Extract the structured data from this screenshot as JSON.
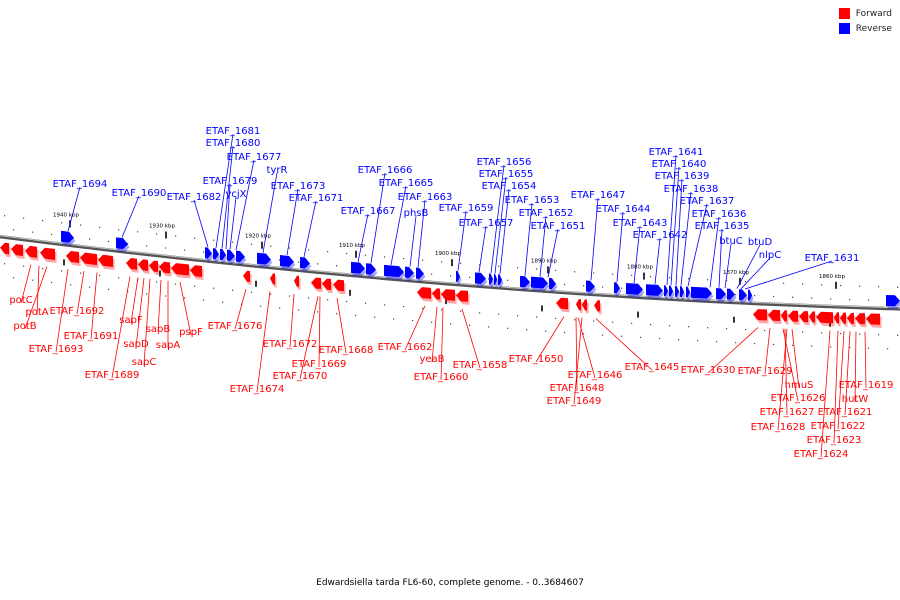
{
  "title": "Edwardsiella tarda FL6-60, complete genome. - 0..3684607",
  "legend": [
    {
      "label": "Forward",
      "color": "#ff0000"
    },
    {
      "label": "Reverse",
      "color": "#0000ff"
    }
  ],
  "colors": {
    "forward": "#ff0000",
    "reverse": "#0000ff",
    "backbone": "#8a8a8a"
  },
  "ticks": [
    "1940 kbp",
    "1930 kbp",
    "1920 kbp",
    "1910 kbp",
    "1900 kbp",
    "1890 kbp",
    "1880 kbp",
    "1870 kbp",
    "1860 kbp"
  ],
  "reverse_labels": [
    "ETAF_1694",
    "ETAF_1690",
    "ETAF_1682",
    "ETAF_1681",
    "ETAF_1680",
    "ETAF_1679",
    "ycjX",
    "ETAF_1677",
    "tyrR",
    "ETAF_1673",
    "ETAF_1671",
    "ETAF_1667",
    "ETAF_1666",
    "ETAF_1665",
    "phsB",
    "ETAF_1663",
    "ETAF_1659",
    "ETAF_1657",
    "ETAF_1656",
    "ETAF_1655",
    "ETAF_1654",
    "ETAF_1653",
    "ETAF_1652",
    "ETAF_1651",
    "ETAF_1647",
    "ETAF_1644",
    "ETAF_1643",
    "ETAF_1642",
    "ETAF_1641",
    "ETAF_1640",
    "ETAF_1639",
    "ETAF_1638",
    "ETAF_1637",
    "ETAF_1636",
    "ETAF_1635",
    "btuC",
    "btuD",
    "nlpC",
    "ETAF_1631"
  ],
  "forward_labels": [
    "potC",
    "potA",
    "potB",
    "ETAF_1693",
    "ETAF_1692",
    "ETAF_1691",
    "ETAF_1689",
    "sapF",
    "sapD",
    "sapC",
    "sapB",
    "sapA",
    "pspF",
    "ETAF_1676",
    "ETAF_1674",
    "ETAF_1672",
    "ETAF_1670",
    "ETAF_1669",
    "ETAF_1668",
    "ETAF_1662",
    "yeaB",
    "ETAF_1660",
    "ETAF_1658",
    "ETAF_1650",
    "ETAF_1646",
    "ETAF_1648",
    "ETAF_1649",
    "ETAF_1645",
    "ETAF_1630",
    "ETAF_1629",
    "hmuS",
    "ETAF_1626",
    "ETAF_1627",
    "ETAF_1628",
    "ETAF_1619",
    "hutW",
    "ETAF_1621",
    "ETAF_1622",
    "ETAF_1623",
    "ETAF_1624"
  ]
}
